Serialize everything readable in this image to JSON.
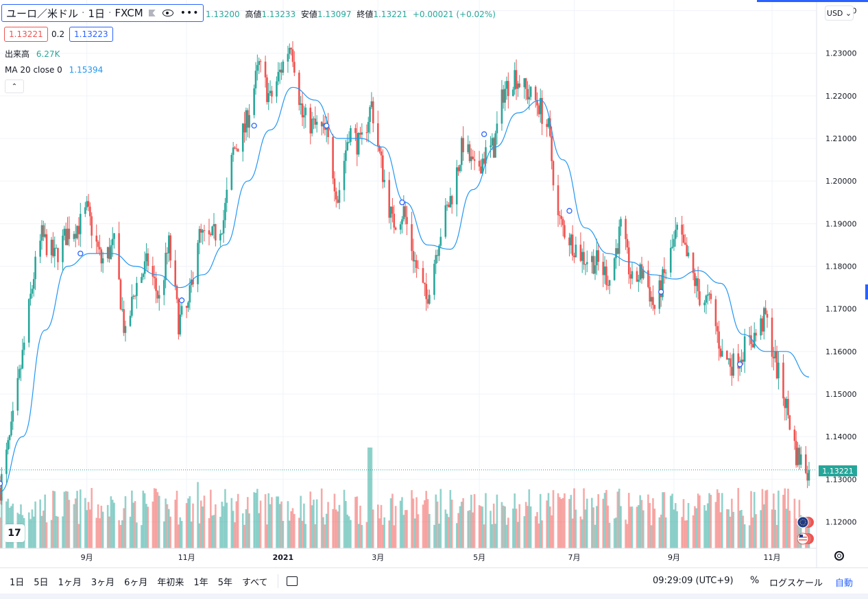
{
  "header": {
    "symbol": "ユーロ／米ドル",
    "interval": "1日",
    "exchange": "FXCM",
    "dot": "·",
    "more": "•••",
    "ohlc": [
      {
        "label": "高値",
        "value": "1.13233"
      },
      {
        "label": "安値",
        "value": "1.13097"
      },
      {
        "label": "終値",
        "value": "1.13221"
      },
      {
        "label": "",
        "value": "+0.00021 (+0.02%)"
      }
    ],
    "open_partial": "1.13200",
    "bid": "1.13221",
    "spread": "0.2",
    "ask": "1.13223",
    "bid_color": "#ef5350",
    "ask_color": "#2962ff"
  },
  "indicators": {
    "volume_label": "出来高",
    "volume_value": "6.27K",
    "ma_label": "MA 20 close 0",
    "ma_value": "1.15394",
    "collapse": "⌃"
  },
  "price_axis": {
    "currency": "USD ⌄",
    "last_price": "1.13221",
    "ticks": [
      "1.24000",
      "1.23000",
      "1.22000",
      "1.21000",
      "1.20000",
      "1.19000",
      "1.18000",
      "1.17000",
      "1.16000",
      "1.15000",
      "1.14000",
      "1.13000",
      "1.12000"
    ]
  },
  "time_axis": {
    "labels": [
      "9月",
      "11月",
      "2021",
      "3月",
      "5月",
      "7月",
      "9月",
      "11月"
    ]
  },
  "bottom_bar": {
    "ranges": [
      "1日",
      "5日",
      "1ヶ月",
      "3ヶ月",
      "6ヶ月",
      "年初来",
      "1年",
      "5年",
      "すべて"
    ],
    "clock": "09:29:09 (UTC+9)",
    "percent": "%",
    "log_scale": "ログスケール",
    "auto": "自動"
  },
  "logo_text": "17",
  "colors": {
    "up": "#26a69a",
    "down": "#ef5350",
    "ma": "#2196f3",
    "grid": "#f0f3fa"
  },
  "chart_data": {
    "type": "candlestick",
    "series_name": "ユーロ／米ドル",
    "ylim": [
      1.1138,
      1.2425
    ],
    "y_ticks": [
      1.24,
      1.23,
      1.22,
      1.21,
      1.2,
      1.19,
      1.18,
      1.17,
      1.16,
      1.15,
      1.14,
      1.13,
      1.12
    ],
    "x_range": [
      "2020-07-09",
      "2021-11-24"
    ],
    "x_tick_labels": [
      {
        "label": "9月",
        "date": "2020-09-01"
      },
      {
        "label": "11月",
        "date": "2020-11-02"
      },
      {
        "label": "2021",
        "date": "2021-01-01"
      },
      {
        "label": "3月",
        "date": "2021-03-01"
      },
      {
        "label": "5月",
        "date": "2021-05-03"
      },
      {
        "label": "7月",
        "date": "2021-07-01"
      },
      {
        "label": "9月",
        "date": "2021-09-01"
      },
      {
        "label": "11月",
        "date": "2021-11-01"
      }
    ],
    "close_anchors": [
      [
        "2020-07-09",
        1.128
      ],
      [
        "2020-07-16",
        1.141
      ],
      [
        "2020-07-23",
        1.159
      ],
      [
        "2020-07-30",
        1.178
      ],
      [
        "2020-08-04",
        1.187
      ],
      [
        "2020-08-12",
        1.182
      ],
      [
        "2020-08-20",
        1.188
      ],
      [
        "2020-08-28",
        1.19
      ],
      [
        "2020-09-01",
        1.193
      ],
      [
        "2020-09-10",
        1.181
      ],
      [
        "2020-09-18",
        1.185
      ],
      [
        "2020-09-25",
        1.163
      ],
      [
        "2020-10-01",
        1.175
      ],
      [
        "2020-10-09",
        1.181
      ],
      [
        "2020-10-16",
        1.172
      ],
      [
        "2020-10-22",
        1.185
      ],
      [
        "2020-10-28",
        1.167
      ],
      [
        "2020-11-03",
        1.17
      ],
      [
        "2020-11-09",
        1.187
      ],
      [
        "2020-11-17",
        1.186
      ],
      [
        "2020-11-25",
        1.191
      ],
      [
        "2020-12-01",
        1.207
      ],
      [
        "2020-12-08",
        1.212
      ],
      [
        "2020-12-17",
        1.227
      ],
      [
        "2020-12-24",
        1.219
      ],
      [
        "2021-01-06",
        1.233
      ],
      [
        "2021-01-13",
        1.215
      ],
      [
        "2021-01-20",
        1.213
      ],
      [
        "2021-01-28",
        1.211
      ],
      [
        "2021-02-04",
        1.196
      ],
      [
        "2021-02-11",
        1.212
      ],
      [
        "2021-02-18",
        1.208
      ],
      [
        "2021-02-25",
        1.218
      ],
      [
        "2021-03-02",
        1.206
      ],
      [
        "2021-03-10",
        1.19
      ],
      [
        "2021-03-17",
        1.193
      ],
      [
        "2021-03-24",
        1.181
      ],
      [
        "2021-03-31",
        1.172
      ],
      [
        "2021-04-08",
        1.187
      ],
      [
        "2021-04-16",
        1.197
      ],
      [
        "2021-04-23",
        1.209
      ],
      [
        "2021-04-30",
        1.202
      ],
      [
        "2021-05-06",
        1.206
      ],
      [
        "2021-05-12",
        1.208
      ],
      [
        "2021-05-18",
        1.221
      ],
      [
        "2021-05-25",
        1.225
      ],
      [
        "2021-06-01",
        1.221
      ],
      [
        "2021-06-09",
        1.218
      ],
      [
        "2021-06-15",
        1.212
      ],
      [
        "2021-06-21",
        1.191
      ],
      [
        "2021-06-29",
        1.186
      ],
      [
        "2021-07-07",
        1.182
      ],
      [
        "2021-07-15",
        1.181
      ],
      [
        "2021-07-23",
        1.177
      ],
      [
        "2021-07-30",
        1.189
      ],
      [
        "2021-08-06",
        1.176
      ],
      [
        "2021-08-13",
        1.179
      ],
      [
        "2021-08-20",
        1.17
      ],
      [
        "2021-08-27",
        1.179
      ],
      [
        "2021-09-03",
        1.188
      ],
      [
        "2021-09-10",
        1.181
      ],
      [
        "2021-09-17",
        1.173
      ],
      [
        "2021-09-24",
        1.171
      ],
      [
        "2021-10-01",
        1.159
      ],
      [
        "2021-10-08",
        1.157
      ],
      [
        "2021-10-15",
        1.161
      ],
      [
        "2021-10-22",
        1.164
      ],
      [
        "2021-10-28",
        1.168
      ],
      [
        "2021-11-04",
        1.156
      ],
      [
        "2021-11-10",
        1.147
      ],
      [
        "2021-11-16",
        1.136
      ],
      [
        "2021-11-24",
        1.132
      ]
    ],
    "ma_anchors": [
      [
        "2020-07-09",
        1.127
      ],
      [
        "2020-07-23",
        1.14
      ],
      [
        "2020-08-06",
        1.165
      ],
      [
        "2020-08-20",
        1.18
      ],
      [
        "2020-09-03",
        1.183
      ],
      [
        "2020-09-17",
        1.183
      ],
      [
        "2020-10-01",
        1.18
      ],
      [
        "2020-10-15",
        1.178
      ],
      [
        "2020-10-29",
        1.175
      ],
      [
        "2020-11-12",
        1.178
      ],
      [
        "2020-11-26",
        1.185
      ],
      [
        "2020-12-10",
        1.2
      ],
      [
        "2020-12-24",
        1.212
      ],
      [
        "2021-01-07",
        1.222
      ],
      [
        "2021-01-21",
        1.219
      ],
      [
        "2021-02-04",
        1.21
      ],
      [
        "2021-02-18",
        1.21
      ],
      [
        "2021-03-04",
        1.208
      ],
      [
        "2021-03-18",
        1.195
      ],
      [
        "2021-04-01",
        1.185
      ],
      [
        "2021-04-15",
        1.184
      ],
      [
        "2021-04-29",
        1.198
      ],
      [
        "2021-05-13",
        1.208
      ],
      [
        "2021-05-27",
        1.216
      ],
      [
        "2021-06-10",
        1.219
      ],
      [
        "2021-06-24",
        1.205
      ],
      [
        "2021-07-08",
        1.189
      ],
      [
        "2021-07-22",
        1.183
      ],
      [
        "2021-08-05",
        1.181
      ],
      [
        "2021-08-19",
        1.178
      ],
      [
        "2021-09-02",
        1.177
      ],
      [
        "2021-09-16",
        1.179
      ],
      [
        "2021-09-30",
        1.176
      ],
      [
        "2021-10-14",
        1.164
      ],
      [
        "2021-10-28",
        1.16
      ],
      [
        "2021-11-10",
        1.16
      ],
      [
        "2021-11-24",
        1.154
      ]
    ],
    "ma_markers": [
      [
        "2020-07-09",
        1.129
      ],
      [
        "2020-08-28",
        1.183
      ],
      [
        "2020-10-30",
        1.172
      ],
      [
        "2020-12-14",
        1.213
      ],
      [
        "2021-01-28",
        1.213
      ],
      [
        "2021-03-16",
        1.195
      ],
      [
        "2021-05-06",
        1.211
      ],
      [
        "2021-06-28",
        1.193
      ],
      [
        "2021-08-24",
        1.174
      ],
      [
        "2021-10-12",
        1.157
      ]
    ],
    "volume_ylim": [
      0,
      5000
    ],
    "volume_mean": 1450,
    "volume_spikes": [
      [
        "2020-11-08",
        2300
      ],
      [
        "2021-02-24",
        3500
      ],
      [
        "2020-12-28",
        1800
      ]
    ],
    "last_close": 1.13221
  }
}
